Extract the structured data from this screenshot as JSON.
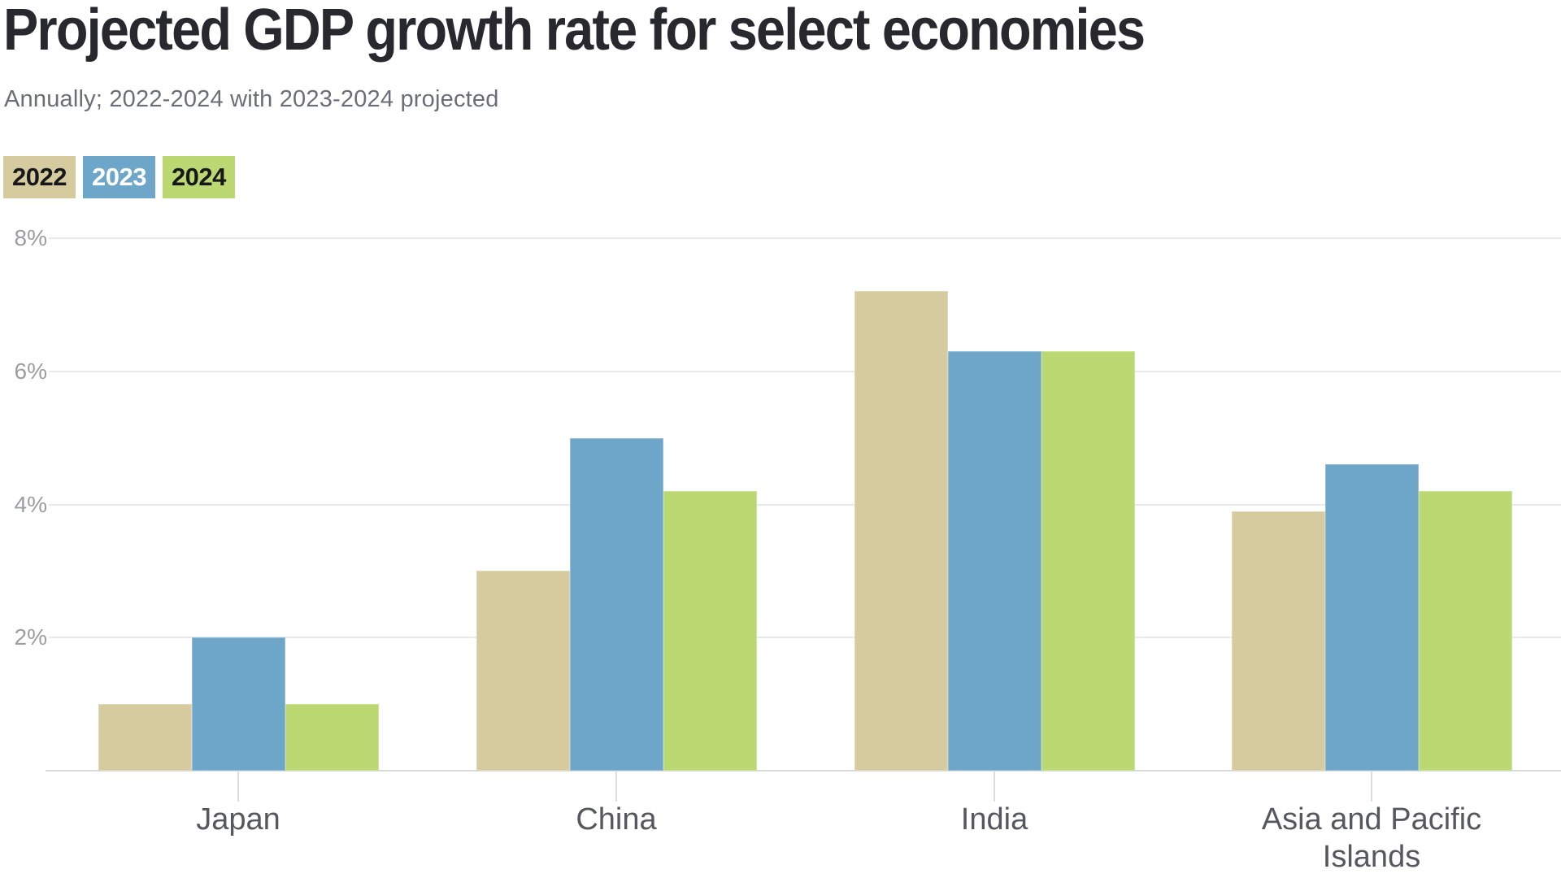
{
  "page": {
    "title": "Projected GDP growth rate for select economies",
    "subtitle": "Annually; 2022-2024 with 2023-2024 projected"
  },
  "legend": {
    "items": [
      {
        "label": "2022",
        "bg": "#d6cb9e",
        "fg": "#17181a"
      },
      {
        "label": "2023",
        "bg": "#6ea6c9",
        "fg": "#ffffff"
      },
      {
        "label": "2024",
        "bg": "#bbd873",
        "fg": "#17181a"
      }
    ]
  },
  "chart_data": {
    "type": "bar",
    "title": "Projected GDP growth rate for select economies",
    "subtitle": "Annually; 2022-2024 with 2023-2024 projected",
    "categories": [
      "Japan",
      "China",
      "India",
      "Asia and Pacific Islands"
    ],
    "series": [
      {
        "name": "2022",
        "color": "#d6cb9e",
        "values": [
          1.0,
          3.0,
          7.2,
          3.9
        ]
      },
      {
        "name": "2023",
        "color": "#6ea6c9",
        "values": [
          2.0,
          5.0,
          6.3,
          4.6
        ]
      },
      {
        "name": "2024",
        "color": "#bbd873",
        "values": [
          1.0,
          4.2,
          6.3,
          4.2
        ]
      }
    ],
    "ylabel": "",
    "xlabel": "",
    "ylim": [
      0,
      8
    ],
    "yticks": [
      {
        "value": 2,
        "label": "2%"
      },
      {
        "value": 4,
        "label": "4%"
      },
      {
        "value": 6,
        "label": "6%"
      },
      {
        "value": 8,
        "label": "8%"
      }
    ],
    "grid": true,
    "legend_position": "top-left"
  },
  "colors": {
    "background": "#ffffff",
    "title": "#27292e",
    "subtitle": "#6a6f77",
    "gridline": "#e8e9eb",
    "baseline": "#d8dadc",
    "axis_tick": "#dcdddf",
    "ytick_label": "#9a9da2",
    "category_label": "#55585e"
  }
}
